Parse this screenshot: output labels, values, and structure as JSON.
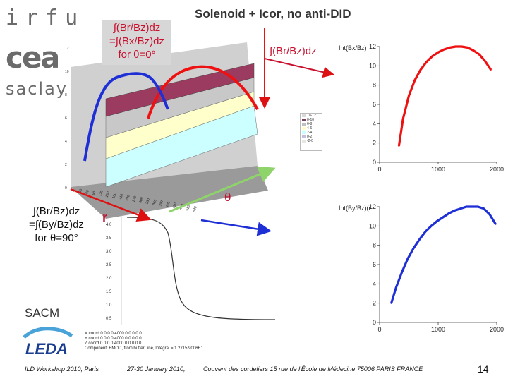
{
  "logos": {
    "irfu": "irfu",
    "cea": "cea",
    "saclay": "saclay",
    "leda": "LEDA",
    "sacm": "SACM"
  },
  "title": "Solenoid + Icor, no anti-DID",
  "boxes": {
    "top_left": [
      "∫(Br/Bz)dz",
      "=∫(Bx/Bz)dz",
      "for θ=0°"
    ],
    "bottom_left": [
      "∫(Br/Bz)dz",
      "=∫(By/Bz)dz",
      "for θ=90°"
    ]
  },
  "labels": {
    "br_bz": "∫(Br/Bz)dz",
    "theta": "θ",
    "r": "r"
  },
  "surface_plot": {
    "z_ticks": [
      "12",
      "10",
      "8",
      "6",
      "4",
      "2",
      "0"
    ],
    "legend": [
      "10-12",
      "8-10",
      "6-8",
      "4-6",
      "2-4",
      "0-2",
      "-2-0"
    ],
    "legend_colors": [
      "#d9d9d9",
      "#7f3f5a",
      "#c0c0c0",
      "#ffffcc",
      "#ccffff",
      "#c0c0e0",
      "#e6e6e6"
    ],
    "r_ticks": [
      "0",
      "30",
      "60",
      "90",
      "120",
      "150",
      "180",
      "210",
      "240",
      "270",
      "300",
      "330",
      "360",
      "390",
      "420",
      "450",
      "480",
      "510",
      "540"
    ]
  },
  "field_plot": {
    "y_ticks": [
      "4.0",
      "3.5",
      "3.0",
      "2.5",
      "2.0",
      "1.5",
      "1.0",
      "0.5"
    ],
    "readout": {
      "rows": [
        [
          "X coord",
          "0.0",
          "0.0",
          "4000.0",
          "0.0",
          "0.0"
        ],
        [
          "Y coord",
          "0.0",
          "0.0",
          "4000.0",
          "0.0",
          "0.0"
        ],
        [
          "Z coord",
          "0.0",
          "0.0",
          "4000.0",
          "0.0",
          "0.0"
        ]
      ],
      "component": "Component: BMOD, from buffer, line, Integral = 1.2715.9006E1"
    }
  },
  "chart_data": [
    {
      "type": "line",
      "ylabel": "Int(Bx/Bz)",
      "x_ticks": [
        "0",
        "1000",
        "2000"
      ],
      "y_ticks": [
        "12",
        "10",
        "8",
        "6",
        "4",
        "2",
        "0"
      ],
      "xlim": [
        0,
        2000
      ],
      "ylim": [
        0,
        12
      ],
      "grid": false,
      "series": [
        {
          "color": "#ee1111",
          "x": [
            330,
            400,
            500,
            600,
            700,
            800,
            900,
            1000,
            1100,
            1200,
            1300,
            1400,
            1500,
            1600,
            1700,
            1800,
            1900
          ],
          "y": [
            1.7,
            4.5,
            6.9,
            8.5,
            9.6,
            10.4,
            11.0,
            11.4,
            11.7,
            11.9,
            12.0,
            12.0,
            11.9,
            11.6,
            11.2,
            10.5,
            9.6
          ]
        }
      ]
    },
    {
      "type": "line",
      "ylabel": "Int(By/Bz)(r",
      "x_ticks": [
        "0",
        "1000",
        "2000"
      ],
      "y_ticks": [
        "12",
        "10",
        "8",
        "6",
        "4",
        "2",
        "0"
      ],
      "xlim": [
        0,
        2000
      ],
      "ylim": [
        0,
        12
      ],
      "grid": false,
      "series": [
        {
          "color": "#1f2fd6",
          "x": [
            200,
            280,
            380,
            480,
            580,
            680,
            780,
            880,
            980,
            1080,
            1180,
            1280,
            1380,
            1480,
            1580,
            1680,
            1780,
            1880,
            1980
          ],
          "y": [
            2.0,
            3.6,
            5.2,
            6.6,
            7.7,
            8.6,
            9.4,
            10.0,
            10.5,
            10.9,
            11.3,
            11.6,
            11.8,
            12.0,
            12.0,
            12.0,
            11.8,
            11.2,
            10.2
          ]
        }
      ]
    }
  ],
  "footer": {
    "left": "ILD Workshop 2010, Paris",
    "middle": "27-30 January 2010,",
    "right": "Couvent des cordeliers  15 rue de l'École de Médecine 75006 PARIS FRANCE",
    "page": "14"
  }
}
